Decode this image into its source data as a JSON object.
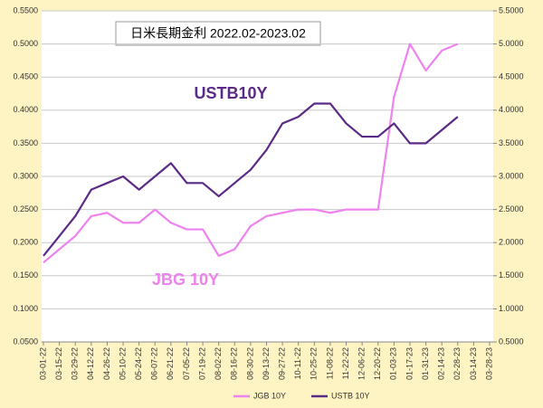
{
  "chart_data": {
    "type": "line",
    "title": "日米長期金利 2022.02-2023.02",
    "annotations": [
      "USTB10Y",
      "JBG 10Y"
    ],
    "categories": [
      "03-01-22",
      "03-15-22",
      "03-29-22",
      "04-12-22",
      "04-26-22",
      "05-10-22",
      "05-24-22",
      "06-07-22",
      "06-21-22",
      "07-05-22",
      "07-19-22",
      "08-02-22",
      "08-16-22",
      "08-30-22",
      "09-13-22",
      "09-27-22",
      "10-11-22",
      "10-25-22",
      "11-08-22",
      "11-22-22",
      "12-06-22",
      "12-20-22",
      "01-03-23",
      "01-17-23",
      "01-31-23",
      "02-14-23",
      "02-28-23",
      "03-14-23",
      "03-28-23"
    ],
    "series": [
      {
        "name": "JGB 10Y",
        "color": "#ee82ee",
        "values": [
          0.17,
          0.19,
          0.21,
          0.24,
          0.245,
          0.23,
          0.23,
          0.25,
          0.23,
          0.22,
          0.22,
          0.18,
          0.19,
          0.225,
          0.24,
          0.245,
          0.25,
          0.25,
          0.245,
          0.25,
          0.25,
          0.25,
          0.42,
          0.5,
          0.46,
          0.49,
          0.5,
          null,
          null
        ]
      },
      {
        "name": "USTB 10Y",
        "color": "#5b2a86",
        "axis": "y2",
        "values": [
          1.8,
          2.1,
          2.4,
          2.8,
          2.9,
          3.0,
          2.8,
          3.0,
          3.2,
          2.9,
          2.9,
          2.7,
          2.9,
          3.1,
          3.4,
          3.8,
          3.9,
          4.1,
          4.1,
          3.8,
          3.6,
          3.6,
          3.8,
          3.5,
          3.5,
          3.7,
          3.9,
          null,
          null
        ]
      }
    ],
    "ylim": [
      0.05,
      0.55
    ],
    "yticks": [
      {
        "value": 0.05,
        "label": "0.0500"
      },
      {
        "value": 0.1,
        "label": "0.1000"
      },
      {
        "value": 0.15,
        "label": "0.1500"
      },
      {
        "value": 0.2,
        "label": "0.2000"
      },
      {
        "value": 0.25,
        "label": "0.2500"
      },
      {
        "value": 0.3,
        "label": "0.3000"
      },
      {
        "value": 0.35,
        "label": "0.3500"
      },
      {
        "value": 0.4,
        "label": "0.4000"
      },
      {
        "value": 0.45,
        "label": "0.4500"
      },
      {
        "value": 0.5,
        "label": "0.5000"
      },
      {
        "value": 0.55,
        "label": "0.5500"
      }
    ],
    "y2lim": [
      0.5,
      5.5
    ],
    "y2ticks": [
      {
        "value": 0.5,
        "label": "0.5000"
      },
      {
        "value": 1,
        "label": "1.0000"
      },
      {
        "value": 1.5,
        "label": "1.5000"
      },
      {
        "value": 2,
        "label": "2.0000"
      },
      {
        "value": 2.5,
        "label": "2.5000"
      },
      {
        "value": 3,
        "label": "3.0000"
      },
      {
        "value": 3.5,
        "label": "3.5000"
      },
      {
        "value": 4,
        "label": "4.0000"
      },
      {
        "value": 4.5,
        "label": "4.5000"
      },
      {
        "value": 5,
        "label": "5.0000"
      },
      {
        "value": 5.5,
        "label": "5.5000"
      }
    ],
    "grid": true,
    "legend": "bottom"
  }
}
